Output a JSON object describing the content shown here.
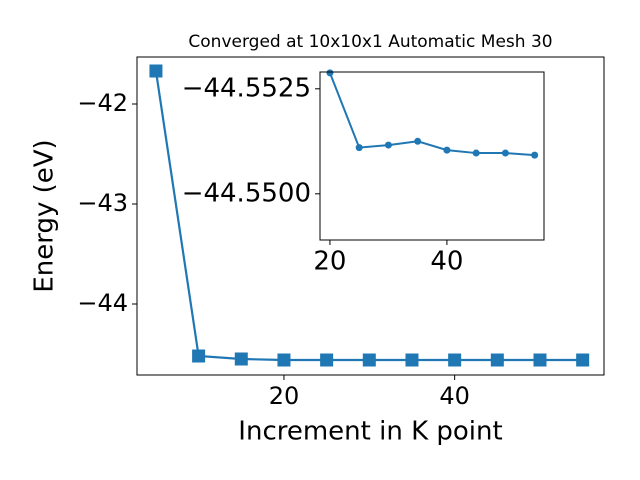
{
  "chart_data": [
    {
      "type": "line",
      "title": "Converged at 10x10x1 Automatic Mesh 30",
      "xlabel": "Increment in K point",
      "ylabel": "Energy (eV)",
      "x": [
        5,
        10,
        15,
        20,
        25,
        30,
        35,
        40,
        45,
        50,
        55
      ],
      "series": [
        {
          "color": "#1f77b4",
          "marker": "square",
          "values": [
            -41.67,
            -44.52,
            -44.55,
            -44.56,
            -44.56,
            -44.56,
            -44.56,
            -44.56,
            -44.56,
            -44.56,
            -44.56
          ]
        }
      ],
      "xlim": [
        2.78,
        57.5
      ],
      "ylim": [
        -44.71,
        -41.53
      ],
      "xticks": [
        20,
        40
      ],
      "yticks": [
        {
          "value": -44,
          "label": "−44"
        },
        {
          "value": -43,
          "label": "−43"
        },
        {
          "value": -42,
          "label": "−42"
        }
      ]
    },
    {
      "type": "line",
      "x": [
        20,
        25,
        30,
        35,
        40,
        45,
        50,
        55
      ],
      "series": [
        {
          "color": "#1f77b4",
          "marker": "circle",
          "values": [
            -44.55288,
            -44.5511,
            -44.55116,
            -44.55125,
            -44.55104,
            -44.55097,
            -44.55097,
            -44.55092
          ]
        }
      ],
      "xlim": [
        18.3,
        56.6
      ],
      "ylim": [
        -44.5489,
        -44.5529
      ],
      "xticks": [
        20,
        40
      ],
      "yticks": [
        {
          "value": -44.55,
          "label": "−44.5500"
        },
        {
          "value": -44.5525,
          "label": "−44.5525"
        }
      ]
    }
  ]
}
